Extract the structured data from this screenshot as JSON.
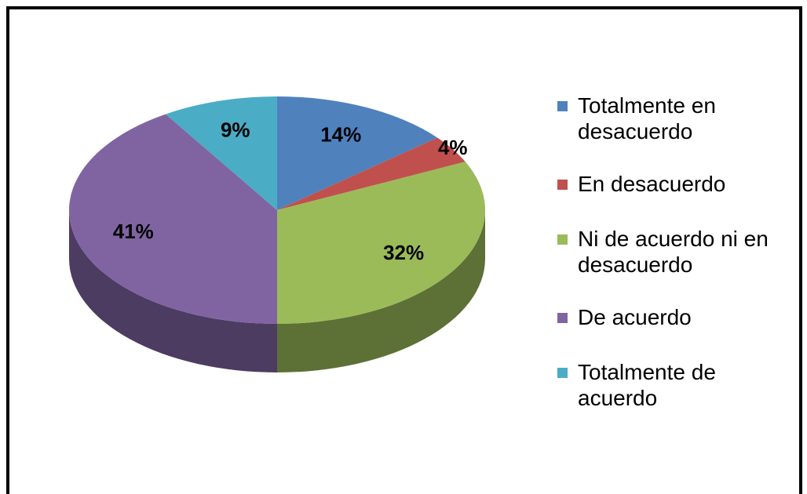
{
  "chart_data": {
    "type": "pie",
    "categories": [
      "Totalmente en desacuerdo",
      "En desacuerdo",
      "Ni de acuerdo ni en desacuerdo",
      "De acuerdo",
      "Totalmente de acuerdo"
    ],
    "values": [
      14,
      4,
      32,
      41,
      9
    ],
    "value_labels": [
      "14%",
      "4%",
      "32%",
      "41%",
      "9%"
    ],
    "colors": [
      "#4f81bd",
      "#c0504d",
      "#9bbb59",
      "#8064a2",
      "#4bacc6"
    ],
    "legend": "right"
  }
}
